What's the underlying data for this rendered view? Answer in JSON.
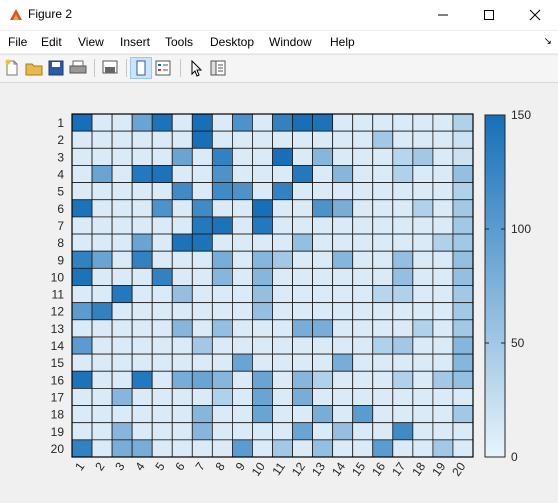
{
  "window": {
    "title": "Figure 2"
  },
  "menu": [
    "File",
    "Edit",
    "View",
    "Insert",
    "Tools",
    "Desktop",
    "Window",
    "Help"
  ],
  "toolbar": [
    "new-figure",
    "open-file",
    "save",
    "print",
    "print-preview",
    "dock-figure",
    "insert-legend",
    "edit-plot",
    "property-inspector"
  ],
  "colors": {
    "low": "#e8f4fc",
    "high": "#166fb8",
    "grid": "#000000"
  },
  "chart_data": {
    "type": "heatmap",
    "xlabels": [
      "1",
      "2",
      "3",
      "4",
      "5",
      "6",
      "7",
      "8",
      "9",
      "10",
      "11",
      "12",
      "13",
      "14",
      "15",
      "16",
      "17",
      "18",
      "19",
      "20"
    ],
    "ylabels": [
      "1",
      "2",
      "3",
      "4",
      "5",
      "6",
      "7",
      "8",
      "9",
      "10",
      "11",
      "12",
      "13",
      "14",
      "15",
      "16",
      "17",
      "18",
      "19",
      "20"
    ],
    "colorbar": {
      "min": 0,
      "max": 150,
      "ticks": [
        0,
        50,
        100,
        150
      ]
    },
    "values": [
      [
        150,
        10,
        10,
        90,
        145,
        10,
        150,
        10,
        110,
        10,
        130,
        150,
        145,
        10,
        10,
        10,
        10,
        10,
        10,
        40
      ],
      [
        10,
        10,
        10,
        10,
        10,
        10,
        150,
        10,
        10,
        10,
        10,
        10,
        10,
        10,
        10,
        50,
        10,
        10,
        10,
        20
      ],
      [
        10,
        10,
        10,
        10,
        10,
        90,
        10,
        130,
        10,
        10,
        150,
        10,
        70,
        10,
        10,
        10,
        35,
        50,
        10,
        20
      ],
      [
        10,
        90,
        10,
        140,
        145,
        10,
        10,
        110,
        10,
        10,
        10,
        140,
        10,
        70,
        10,
        10,
        40,
        10,
        10,
        60
      ],
      [
        10,
        10,
        10,
        10,
        10,
        120,
        10,
        120,
        110,
        10,
        130,
        10,
        10,
        10,
        10,
        10,
        10,
        10,
        10,
        40
      ],
      [
        145,
        10,
        10,
        10,
        110,
        10,
        120,
        10,
        10,
        150,
        10,
        10,
        110,
        80,
        10,
        10,
        10,
        40,
        10,
        50
      ],
      [
        10,
        10,
        10,
        10,
        10,
        10,
        140,
        145,
        10,
        140,
        10,
        10,
        10,
        10,
        10,
        10,
        10,
        10,
        10,
        50
      ],
      [
        10,
        10,
        10,
        90,
        10,
        145,
        145,
        10,
        10,
        10,
        10,
        60,
        10,
        10,
        10,
        10,
        10,
        10,
        40,
        50
      ],
      [
        130,
        90,
        10,
        130,
        10,
        10,
        10,
        80,
        10,
        70,
        50,
        10,
        10,
        70,
        10,
        10,
        60,
        10,
        10,
        60
      ],
      [
        145,
        10,
        10,
        10,
        130,
        10,
        10,
        70,
        10,
        70,
        10,
        10,
        10,
        10,
        10,
        10,
        60,
        10,
        10,
        60
      ],
      [
        10,
        10,
        140,
        10,
        10,
        60,
        10,
        10,
        10,
        60,
        10,
        10,
        10,
        10,
        10,
        35,
        40,
        10,
        10,
        50
      ],
      [
        100,
        130,
        10,
        10,
        10,
        10,
        10,
        10,
        10,
        60,
        10,
        10,
        10,
        10,
        10,
        10,
        10,
        10,
        10,
        50
      ],
      [
        10,
        10,
        10,
        10,
        10,
        70,
        10,
        60,
        10,
        10,
        10,
        80,
        80,
        10,
        10,
        10,
        10,
        40,
        10,
        50
      ],
      [
        100,
        10,
        10,
        10,
        10,
        10,
        50,
        10,
        10,
        10,
        10,
        10,
        10,
        10,
        10,
        40,
        50,
        10,
        10,
        70
      ],
      [
        10,
        10,
        10,
        10,
        10,
        10,
        10,
        10,
        90,
        10,
        10,
        10,
        10,
        80,
        10,
        10,
        10,
        10,
        10,
        70
      ],
      [
        145,
        10,
        10,
        140,
        10,
        80,
        90,
        70,
        10,
        90,
        10,
        70,
        40,
        10,
        10,
        10,
        40,
        10,
        50,
        60
      ],
      [
        10,
        10,
        70,
        10,
        10,
        10,
        10,
        40,
        10,
        90,
        10,
        80,
        10,
        10,
        10,
        10,
        10,
        10,
        10,
        10
      ],
      [
        10,
        10,
        10,
        10,
        10,
        10,
        70,
        10,
        10,
        90,
        10,
        10,
        80,
        10,
        100,
        10,
        10,
        10,
        10,
        50
      ],
      [
        10,
        10,
        70,
        10,
        10,
        10,
        70,
        10,
        10,
        10,
        10,
        90,
        10,
        60,
        10,
        10,
        120,
        10,
        10,
        10
      ],
      [
        130,
        10,
        80,
        80,
        10,
        10,
        10,
        10,
        100,
        10,
        50,
        10,
        60,
        10,
        10,
        100,
        10,
        10,
        50,
        10
      ]
    ]
  }
}
